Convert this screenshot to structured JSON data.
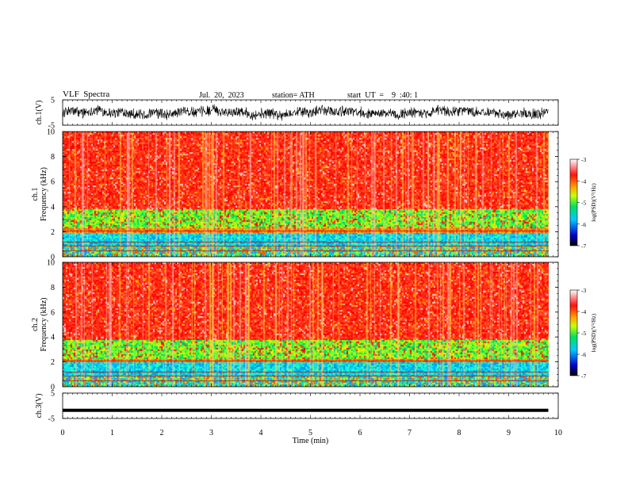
{
  "header": {
    "title": "VLF  Spectra",
    "date": "Jul.  20,  2023",
    "station": "station= ATH",
    "start": "start  UT  =    9  :40: 1"
  },
  "chart_data": [
    {
      "type": "line",
      "name": "ch1-waveform",
      "ylabel": "ch.1(V)",
      "ylim": [
        -5,
        5
      ],
      "yticks": [
        "5",
        "-5"
      ],
      "x_range_min": [
        0,
        9.8
      ],
      "y_envelope": [
        -2.5,
        2.5
      ]
    },
    {
      "type": "heatmap",
      "name": "ch1-spectrogram",
      "ylabel": "ch.1\nFrequency (kHz)",
      "ylim": [
        0,
        10
      ],
      "yticks": [
        "0",
        "2",
        "4",
        "6",
        "8",
        "10"
      ],
      "x_range_min": [
        0,
        9.8
      ],
      "bands": [
        {
          "from_khz": 0.0,
          "to_khz": 0.9,
          "level": "cyan-green mixed"
        },
        {
          "from_khz": 0.9,
          "to_khz": 2.0,
          "level": "cyan"
        },
        {
          "from_khz": 2.0,
          "to_khz": 2.3,
          "level": "red-orange"
        },
        {
          "from_khz": 2.3,
          "to_khz": 3.8,
          "level": "green"
        },
        {
          "from_khz": 3.8,
          "to_khz": 10.0,
          "level": "red"
        }
      ],
      "colorbar": {
        "label": "log(PSD)(V²/Hz)",
        "range": [
          -7,
          -3
        ],
        "ticks": [
          "-3",
          "-4",
          "-5",
          "-6",
          "-7"
        ]
      }
    },
    {
      "type": "heatmap",
      "name": "ch2-spectrogram",
      "ylabel": "ch.2\nFrequency (kHz)",
      "ylim": [
        0,
        10
      ],
      "yticks": [
        "0",
        "2",
        "4",
        "6",
        "8",
        "10"
      ],
      "x_range_min": [
        0,
        9.8
      ],
      "bands": [
        {
          "from_khz": 0.0,
          "to_khz": 0.9,
          "level": "cyan-green mixed"
        },
        {
          "from_khz": 0.9,
          "to_khz": 2.0,
          "level": "cyan"
        },
        {
          "from_khz": 2.0,
          "to_khz": 2.3,
          "level": "red-orange"
        },
        {
          "from_khz": 2.3,
          "to_khz": 3.8,
          "level": "green"
        },
        {
          "from_khz": 3.8,
          "to_khz": 10.0,
          "level": "red"
        }
      ],
      "colorbar": {
        "label": "log(PSD)(V²/Hz)",
        "range": [
          -7,
          -3
        ],
        "ticks": [
          "-3",
          "-4",
          "-5",
          "-6",
          "-7"
        ]
      }
    },
    {
      "type": "line",
      "name": "ch3-waveform",
      "ylabel": "ch.3(V)",
      "ylim": [
        -5,
        5
      ],
      "yticks": [
        "5",
        "-5"
      ],
      "x_range_min": [
        0,
        9.8
      ],
      "y_values": [
        -1.8,
        -1.8
      ]
    }
  ],
  "xaxis": {
    "label": "Time  (min)",
    "range": [
      0,
      10
    ],
    "ticks": [
      "0",
      "1",
      "2",
      "3",
      "4",
      "5",
      "6",
      "7",
      "8",
      "9",
      "10"
    ]
  },
  "colors": {
    "frame": "#000000",
    "background": "#ffffff"
  }
}
